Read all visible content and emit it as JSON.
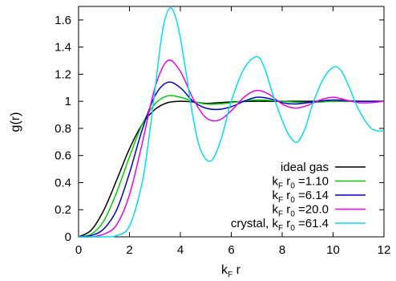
{
  "chart_data": {
    "type": "line",
    "xlabel_main": "k",
    "xlabel_sub": "F",
    "xlabel_rest": " r",
    "ylabel": "g(r)",
    "xlim": [
      0,
      12
    ],
    "ylim": [
      0,
      1.7
    ],
    "xticks": [
      0,
      2,
      4,
      6,
      8,
      10,
      12
    ],
    "yticks": [
      0,
      0.2,
      0.4,
      0.6,
      0.8,
      1,
      1.2,
      1.4,
      1.6
    ],
    "xtick_labels": [
      "0",
      "2",
      "4",
      "6",
      "8",
      "10",
      "12"
    ],
    "ytick_labels": [
      "0",
      "0.2",
      "0.4",
      "0.6",
      "0.8",
      "1",
      "1.2",
      "1.4",
      "1.6"
    ],
    "legend_position": "bottom-right",
    "series": [
      {
        "name": "ideal gas",
        "legend": {
          "pre": "ideal gas",
          "value": ""
        },
        "color": "#000000",
        "x": [
          0,
          0.5,
          1.0,
          1.5,
          2.0,
          2.5,
          3.0,
          3.5,
          4.0,
          4.5,
          5.0,
          5.5,
          6.0,
          7.0,
          8.0,
          9.0,
          10.0,
          11.0,
          12.0
        ],
        "y": [
          0,
          0.05,
          0.2,
          0.42,
          0.65,
          0.83,
          0.94,
          0.99,
          1.0,
          0.995,
          0.985,
          0.99,
          0.995,
          1.0,
          1.0,
          1.0,
          1.0,
          1.0,
          1.0
        ]
      },
      {
        "name": "kF r0 =1.10",
        "legend": {
          "pre": "",
          "value": "=1.10"
        },
        "color": "#00cc00",
        "x": [
          0,
          0.5,
          1.0,
          1.5,
          2.0,
          2.5,
          3.0,
          3.5,
          4.0,
          4.5,
          5.0,
          5.5,
          6.0,
          7.0,
          8.0,
          9.0,
          10.0,
          11.0,
          12.0
        ],
        "y": [
          0,
          0.02,
          0.12,
          0.33,
          0.59,
          0.83,
          0.98,
          1.04,
          1.03,
          1.0,
          0.98,
          0.98,
          0.99,
          1.01,
          1.0,
          0.99,
          1.0,
          1.0,
          1.0
        ]
      },
      {
        "name": "kF r0 =6.14",
        "legend": {
          "pre": "",
          "value": "=6.14"
        },
        "color": "#0000cc",
        "x": [
          0,
          0.5,
          1.0,
          1.5,
          2.0,
          2.5,
          3.0,
          3.5,
          4.0,
          4.5,
          5.0,
          5.5,
          6.0,
          6.5,
          7.0,
          7.5,
          8.0,
          8.5,
          9.0,
          10.0,
          11.0,
          12.0
        ],
        "y": [
          0,
          0.01,
          0.06,
          0.2,
          0.47,
          0.79,
          1.04,
          1.14,
          1.1,
          1.0,
          0.95,
          0.94,
          0.96,
          1.0,
          1.03,
          1.02,
          0.99,
          0.98,
          0.99,
          1.01,
          1.0,
          1.0
        ]
      },
      {
        "name": "kF r0 =20.0",
        "legend": {
          "pre": "",
          "value": "=20.0"
        },
        "color": "#ee00ee",
        "x": [
          0,
          0.5,
          1.0,
          1.5,
          2.0,
          2.5,
          3.0,
          3.5,
          4.0,
          4.5,
          5.0,
          5.5,
          6.0,
          6.5,
          7.0,
          7.5,
          8.0,
          8.5,
          9.0,
          9.5,
          10.0,
          10.5,
          11.0,
          11.5,
          12.0
        ],
        "y": [
          0,
          0.0,
          0.02,
          0.09,
          0.31,
          0.69,
          1.1,
          1.3,
          1.22,
          1.02,
          0.88,
          0.86,
          0.93,
          1.03,
          1.08,
          1.05,
          0.98,
          0.95,
          0.97,
          1.01,
          1.03,
          1.01,
          0.99,
          0.99,
          1.0
        ]
      },
      {
        "name": "crystal, kF r0 =61.4",
        "legend": {
          "pre": "crystal, ",
          "value": "=61.4"
        },
        "color": "#00e0ee",
        "x": [
          0,
          1.0,
          1.5,
          2.0,
          2.5,
          2.8,
          3.0,
          3.3,
          3.6,
          3.9,
          4.2,
          4.5,
          4.8,
          5.2,
          5.6,
          6.0,
          6.5,
          7.0,
          7.3,
          7.6,
          8.0,
          8.3,
          8.6,
          8.9,
          9.2,
          9.6,
          10.0,
          10.3,
          10.6,
          11.0,
          11.5,
          12.0
        ],
        "y": [
          0,
          0.0,
          0.01,
          0.08,
          0.4,
          0.78,
          1.08,
          1.52,
          1.69,
          1.56,
          1.24,
          0.88,
          0.64,
          0.56,
          0.72,
          1.0,
          1.24,
          1.33,
          1.25,
          1.07,
          0.86,
          0.74,
          0.7,
          0.8,
          0.98,
          1.16,
          1.25,
          1.23,
          1.12,
          0.94,
          0.8,
          0.78
        ]
      }
    ]
  }
}
